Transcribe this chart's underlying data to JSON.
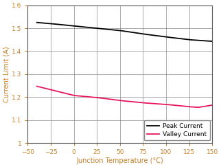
{
  "title": "",
  "xlabel": "Junction Temperature (°C)",
  "ylabel": "Current Limit (A)",
  "xlabel_color": "#c8822a",
  "ylabel_color": "#c8822a",
  "tick_color": "#c8822a",
  "xlim": [
    -50,
    150
  ],
  "ylim": [
    1.0,
    1.6
  ],
  "xticks": [
    -50,
    -25,
    0,
    25,
    50,
    75,
    100,
    125,
    150
  ],
  "yticks": [
    1.0,
    1.1,
    1.2,
    1.3,
    1.4,
    1.5,
    1.6
  ],
  "ytick_labels": [
    "1",
    "1.1",
    "1.2",
    "1.3",
    "1.4",
    "1.5",
    "1.6"
  ],
  "peak_x": [
    -40,
    -25,
    0,
    25,
    50,
    75,
    100,
    125,
    150
  ],
  "peak_y": [
    1.525,
    1.52,
    1.51,
    1.5,
    1.49,
    1.475,
    1.462,
    1.45,
    1.443
  ],
  "valley_x": [
    -40,
    -25,
    0,
    25,
    50,
    75,
    100,
    125,
    135,
    150
  ],
  "valley_y": [
    1.247,
    1.232,
    1.207,
    1.198,
    1.185,
    1.175,
    1.168,
    1.158,
    1.155,
    1.165
  ],
  "peak_color": "#000000",
  "valley_color": "#e8175d",
  "legend_peak": "Peak Current",
  "legend_valley": "Valley Current",
  "grid_color": "#888888",
  "background_color": "#ffffff",
  "legend_fontsize": 6.5,
  "axis_fontsize": 7,
  "tick_fontsize": 6.5,
  "linewidth": 1.3
}
